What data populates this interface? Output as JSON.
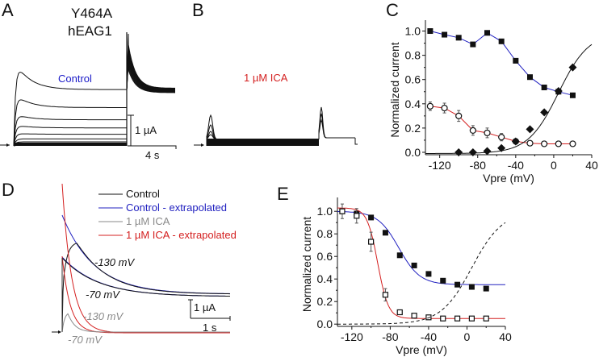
{
  "figure": {
    "title_line1": "Y464A",
    "title_line2": "hEAG1",
    "panels": {
      "A": {
        "letter": "A",
        "label": "Control",
        "label_color": "#1a1ac8",
        "scale_current": "1 µA",
        "scale_time": "4 s"
      },
      "B": {
        "letter": "B",
        "label": "1 µM ICA",
        "label_color": "#d42020"
      },
      "D": {
        "letter": "D",
        "scale_current": "1 µA",
        "scale_time": "1 s",
        "legend": [
          {
            "label": "Control",
            "color": "#111111"
          },
          {
            "label": "Control - extrapolated",
            "color": "#2020c0"
          },
          {
            "label": "1 µM ICA",
            "color": "#8a8a8a"
          },
          {
            "label": "1 µM ICA - extrapolated",
            "color": "#d42020"
          }
        ],
        "annotations": [
          {
            "text": "-130 mV",
            "color": "#111111"
          },
          {
            "text": "-70 mV",
            "color": "#111111"
          },
          {
            "text": "-130 mV",
            "color": "#8a8a8a"
          },
          {
            "text": "-70 mV",
            "color": "#8a8a8a"
          }
        ]
      }
    }
  },
  "chart_data": [
    {
      "panel": "C",
      "letter": "C",
      "type": "scatter",
      "xlabel": "Vpre (mV)",
      "ylabel": "Normalized current",
      "xlim": [
        -135,
        40
      ],
      "ylim": [
        -0.02,
        1.05
      ],
      "xticks": [
        -120,
        -80,
        -40,
        0,
        40
      ],
      "yticks": [
        0.0,
        0.2,
        0.4,
        0.6,
        0.8,
        1.0
      ],
      "xtick_labels": [
        "-120",
        "-80",
        "-40",
        "0",
        "40"
      ],
      "ytick_labels": [
        "0.0",
        "0.2",
        "0.4",
        "0.6",
        "0.8",
        "1.0"
      ],
      "series": [
        {
          "name": "Control (filled squares)",
          "marker": "square-filled",
          "line_color": "#2020c0",
          "x": [
            -130,
            -115,
            -100,
            -85,
            -70,
            -55,
            -40,
            -25,
            -10,
            5,
            20
          ],
          "y": [
            1.0,
            0.97,
            0.945,
            0.89,
            0.985,
            0.915,
            0.755,
            0.62,
            0.535,
            0.5,
            0.47
          ]
        },
        {
          "name": "1 uM ICA (open circles)",
          "marker": "circle-open",
          "line_color": "#d42020",
          "x": [
            -130,
            -115,
            -100,
            -85,
            -70,
            -55,
            -40,
            -25,
            -10,
            5,
            20
          ],
          "y": [
            0.38,
            0.365,
            0.3,
            0.18,
            0.16,
            0.125,
            0.09,
            0.075,
            0.07,
            0.07,
            0.07
          ],
          "err": [
            0.035,
            0.04,
            0.045,
            0.04,
            0.04,
            0.03,
            0.01,
            0.005,
            0.005,
            0.005,
            0.005
          ]
        },
        {
          "name": "Activation (filled diamonds)",
          "marker": "diamond-filled",
          "line_color": "#111111",
          "x": [
            -100,
            -85,
            -70,
            -55,
            -40,
            -25,
            -10,
            5,
            20
          ],
          "y": [
            0.0,
            0.0,
            0.01,
            0.035,
            0.09,
            0.19,
            0.33,
            0.505,
            0.7
          ],
          "fit": {
            "type": "boltzmann",
            "v_half": 5,
            "slope": 16,
            "x_range": [
              -135,
              40
            ]
          }
        }
      ]
    },
    {
      "panel": "E",
      "letter": "E",
      "type": "scatter",
      "xlabel": "Vpre (mV)",
      "ylabel": "Normalized current",
      "xlim": [
        -135,
        40
      ],
      "ylim": [
        -0.02,
        1.08
      ],
      "xticks": [
        -120,
        -80,
        -40,
        0,
        40
      ],
      "yticks": [
        0.0,
        0.2,
        0.4,
        0.6,
        0.8,
        1.0
      ],
      "xtick_labels": [
        "-120",
        "-80",
        "-40",
        "0",
        "40"
      ],
      "ytick_labels": [
        "0.0",
        "0.2",
        "0.4",
        "0.6",
        "0.8",
        "1.0"
      ],
      "series": [
        {
          "name": "Control (filled squares)",
          "marker": "square-filled",
          "fit_color": "#2020c0",
          "x": [
            -130,
            -115,
            -100,
            -85,
            -70,
            -55,
            -40,
            -25,
            -10,
            5,
            20
          ],
          "y": [
            1.0,
            0.98,
            0.945,
            0.81,
            0.61,
            0.52,
            0.445,
            0.385,
            0.35,
            0.33,
            0.315
          ],
          "fit": {
            "type": "boltzmann-decay",
            "top": 1.0,
            "bottom": 0.35,
            "v_half": -71,
            "slope": 11
          }
        },
        {
          "name": "1 uM ICA (open squares)",
          "marker": "square-open",
          "fit_color": "#d42020",
          "x": [
            -130,
            -115,
            -100,
            -85,
            -70,
            -55,
            -40,
            -25,
            -10,
            5,
            20
          ],
          "y": [
            1.0,
            0.96,
            0.73,
            0.26,
            0.105,
            0.075,
            0.06,
            0.05,
            0.05,
            0.05,
            0.05
          ],
          "err": [
            0.065,
            0.065,
            0.085,
            0.055,
            0.02,
            0.01,
            0.01,
            0.005,
            0.005,
            0.005,
            0.005
          ],
          "fit": {
            "type": "boltzmann-decay",
            "top": 1.03,
            "bottom": 0.05,
            "v_half": -93,
            "slope": 5.5
          }
        },
        {
          "name": "Activation (dashed)",
          "line_style": "dashed",
          "fit_color": "#111111",
          "fit": {
            "type": "boltzmann",
            "v_half": 5,
            "slope": 16,
            "x_range": [
              -135,
              40
            ]
          }
        }
      ]
    }
  ]
}
